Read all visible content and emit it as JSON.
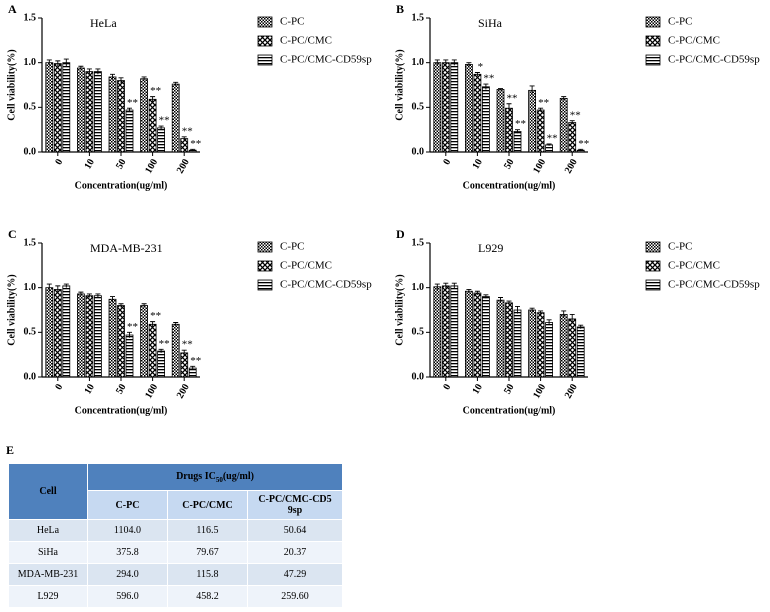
{
  "chart_data": [
    {
      "type": "bar",
      "panel": "A",
      "title": "HeLa",
      "x_label": "Concentration(ug/ml)",
      "y_label": "Cell viability(%)",
      "categories": [
        "0",
        "10",
        "50",
        "100",
        "200"
      ],
      "ylim": [
        0,
        1.5
      ],
      "yticks": [
        {
          "value": 0,
          "label": "0.0"
        },
        0.5,
        {
          "value": 1,
          "label": "1.0"
        },
        1.5
      ],
      "series": [
        {
          "name": "C-PC",
          "color": "#000000",
          "pattern": "checker",
          "values": [
            1.0,
            0.94,
            0.84,
            0.82,
            0.76
          ],
          "errors": [
            0.03,
            0.02,
            0.03,
            0.02,
            0.02
          ]
        },
        {
          "name": "C-PC/CMC",
          "color": "#000000",
          "pattern": "cross",
          "values": [
            0.99,
            0.9,
            0.8,
            0.59,
            0.15
          ],
          "errors": [
            0.03,
            0.03,
            0.03,
            0.03,
            0.02
          ],
          "markers": [
            null,
            null,
            null,
            "**",
            "**"
          ]
        },
        {
          "name": "C-PC/CMC-CD59sp",
          "color": "#000000",
          "pattern": "hlines",
          "values": [
            1.0,
            0.9,
            0.47,
            0.27,
            0.02
          ],
          "errors": [
            0.04,
            0.03,
            0.02,
            0.02,
            0.01
          ],
          "markers": [
            null,
            null,
            "**",
            "**",
            "**"
          ]
        }
      ]
    },
    {
      "type": "bar",
      "panel": "B",
      "title": "SiHa",
      "x_label": "Concentration(ug/ml)",
      "y_label": "Cell viability(%)",
      "categories": [
        "0",
        "10",
        "50",
        "100",
        "200"
      ],
      "ylim": [
        0,
        1.5
      ],
      "yticks": [
        {
          "value": 0,
          "label": "0.0"
        },
        0.5,
        {
          "value": 1,
          "label": "1.0"
        },
        1.5
      ],
      "series": [
        {
          "name": "C-PC",
          "color": "#000000",
          "pattern": "checker",
          "values": [
            1.0,
            0.98,
            0.7,
            0.69,
            0.6
          ],
          "errors": [
            0.03,
            0.02,
            0.01,
            0.05,
            0.02
          ]
        },
        {
          "name": "C-PC/CMC",
          "color": "#000000",
          "pattern": "cross",
          "values": [
            1.0,
            0.87,
            0.49,
            0.47,
            0.33
          ],
          "errors": [
            0.03,
            0.02,
            0.05,
            0.02,
            0.02
          ],
          "markers": [
            null,
            "*",
            "**",
            "**",
            "**"
          ]
        },
        {
          "name": "C-PC/CMC-CD59sp",
          "color": "#000000",
          "pattern": "hlines",
          "values": [
            1.0,
            0.73,
            0.23,
            0.08,
            0.02
          ],
          "errors": [
            0.03,
            0.03,
            0.02,
            0.01,
            0.01
          ],
          "markers": [
            null,
            "**",
            "**",
            "**",
            "**"
          ]
        }
      ]
    },
    {
      "type": "bar",
      "panel": "C",
      "title": "MDA-MB-231",
      "x_label": "Concentration(ug/ml)",
      "y_label": "Cell viability(%)",
      "categories": [
        "0",
        "10",
        "50",
        "100",
        "200"
      ],
      "ylim": [
        0,
        1.5
      ],
      "yticks": [
        {
          "value": 0,
          "label": "0.0"
        },
        0.5,
        {
          "value": 1,
          "label": "1.0"
        },
        1.5
      ],
      "series": [
        {
          "name": "C-PC",
          "color": "#000000",
          "pattern": "checker",
          "values": [
            1.0,
            0.93,
            0.87,
            0.8,
            0.59
          ],
          "errors": [
            0.04,
            0.02,
            0.03,
            0.02,
            0.02
          ]
        },
        {
          "name": "C-PC/CMC",
          "color": "#000000",
          "pattern": "cross",
          "values": [
            0.98,
            0.91,
            0.8,
            0.59,
            0.27
          ],
          "errors": [
            0.04,
            0.02,
            0.02,
            0.03,
            0.03
          ],
          "markers": [
            null,
            null,
            null,
            "**",
            "**"
          ]
        },
        {
          "name": "C-PC/CMC-CD59sp",
          "color": "#000000",
          "pattern": "hlines",
          "values": [
            1.02,
            0.91,
            0.47,
            0.29,
            0.1
          ],
          "errors": [
            0.02,
            0.02,
            0.03,
            0.02,
            0.02
          ],
          "markers": [
            null,
            null,
            "**",
            "**",
            "**"
          ]
        }
      ]
    },
    {
      "type": "bar",
      "panel": "D",
      "title": "L929",
      "x_label": "Concentration(ug/ml)",
      "y_label": "Cell viability(%)",
      "categories": [
        "0",
        "10",
        "50",
        "100",
        "200"
      ],
      "ylim": [
        0,
        1.5
      ],
      "yticks": [
        {
          "value": 0,
          "label": "0.0"
        },
        0.5,
        {
          "value": 1,
          "label": "1.0"
        },
        1.5
      ],
      "series": [
        {
          "name": "C-PC",
          "color": "#000000",
          "pattern": "checker",
          "values": [
            1.01,
            0.96,
            0.86,
            0.75,
            0.7
          ],
          "errors": [
            0.03,
            0.02,
            0.03,
            0.02,
            0.04
          ]
        },
        {
          "name": "C-PC/CMC",
          "color": "#000000",
          "pattern": "cross",
          "values": [
            1.02,
            0.94,
            0.83,
            0.72,
            0.65
          ],
          "errors": [
            0.03,
            0.02,
            0.02,
            0.02,
            0.05
          ]
        },
        {
          "name": "C-PC/CMC-CD59sp",
          "color": "#000000",
          "pattern": "hlines",
          "values": [
            1.02,
            0.9,
            0.75,
            0.61,
            0.56
          ],
          "errors": [
            0.03,
            0.02,
            0.04,
            0.03,
            0.02
          ]
        }
      ]
    }
  ],
  "table": {
    "panel": "E",
    "header_prefix": "Drugs  IC",
    "header_sub": "50",
    "header_suffix": "(ug/ml)",
    "columns": [
      "Cell",
      "C-PC",
      "C-PC/CMC",
      "C-PC/CMC-CD59sp"
    ],
    "rows": [
      [
        "HeLa",
        "1104.0",
        "116.5",
        "50.64"
      ],
      [
        "SiHa",
        "375.8",
        "79.67",
        "20.37"
      ],
      [
        "MDA-MB-231",
        "294.0",
        "115.8",
        "47.29"
      ],
      [
        "L929",
        "596.0",
        "458.2",
        "259.60"
      ]
    ]
  }
}
